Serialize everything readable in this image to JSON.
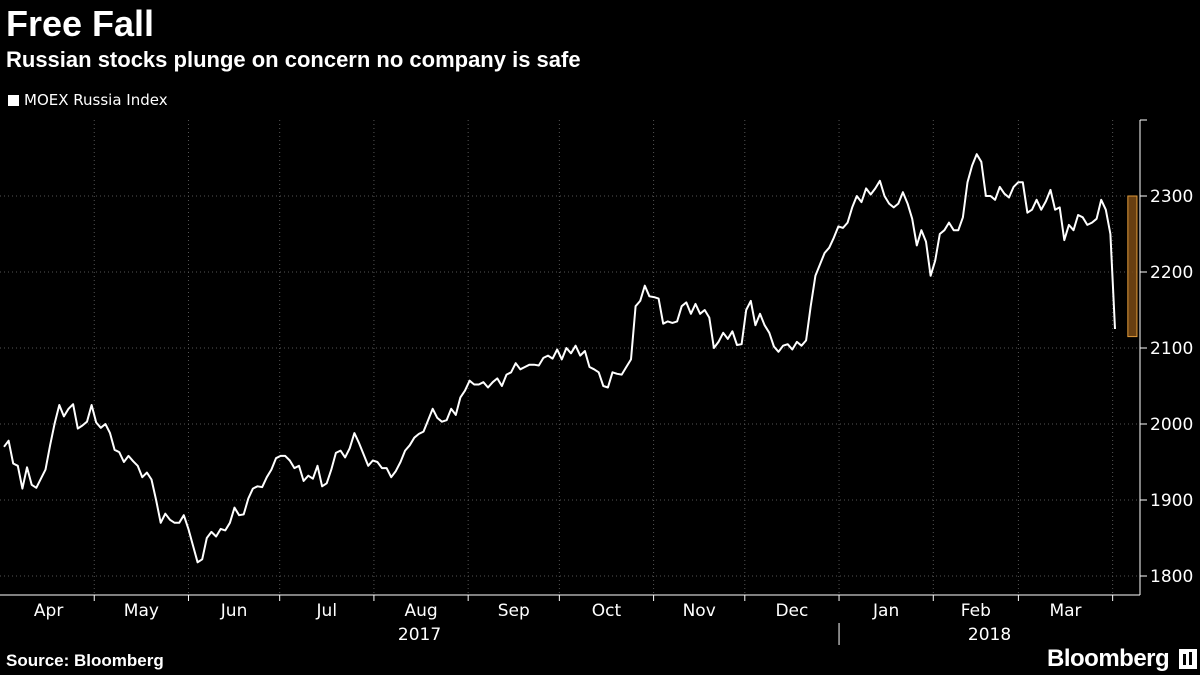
{
  "header": {
    "title": "Free Fall",
    "subtitle": "Russian stocks plunge on concern no company is safe"
  },
  "legend": {
    "label": "MOEX Russia Index"
  },
  "footer": {
    "source": "Source: Bloomberg",
    "brand": "Bloomberg"
  },
  "colors": {
    "background": "#000000",
    "line": "#ffffff",
    "highlight": "#7a4a14",
    "highlight_border": "#e09a3a",
    "grid": "#555555"
  },
  "chart_data": {
    "type": "line",
    "title": "Free Fall",
    "subtitle": "Russian stocks plunge on concern no company is safe",
    "series": [
      {
        "name": "MOEX Russia Index",
        "x_start": "2017-03-31",
        "x_end": "2018-04-10",
        "values": [
          1970,
          1978,
          1948,
          1945,
          1915,
          1943,
          1920,
          1916,
          1928,
          1940,
          1972,
          2001,
          2025,
          2010,
          2020,
          2026,
          1994,
          1998,
          2003,
          2025,
          2002,
          1995,
          2000,
          1988,
          1966,
          1963,
          1950,
          1958,
          1951,
          1945,
          1930,
          1936,
          1927,
          1900,
          1870,
          1882,
          1874,
          1870,
          1870,
          1880,
          1862,
          1840,
          1818,
          1822,
          1850,
          1858,
          1852,
          1862,
          1860,
          1870,
          1890,
          1880,
          1881,
          1902,
          1915,
          1918,
          1917,
          1930,
          1940,
          1955,
          1958,
          1958,
          1952,
          1942,
          1945,
          1925,
          1932,
          1928,
          1945,
          1918,
          1922,
          1940,
          1962,
          1965,
          1956,
          1968,
          1988,
          1975,
          1960,
          1945,
          1952,
          1950,
          1942,
          1942,
          1930,
          1938,
          1950,
          1965,
          1972,
          1982,
          1987,
          1990,
          2005,
          2020,
          2008,
          2003,
          2005,
          2020,
          2012,
          2035,
          2044,
          2057,
          2052,
          2052,
          2055,
          2048,
          2055,
          2060,
          2050,
          2065,
          2068,
          2080,
          2072,
          2075,
          2078,
          2078,
          2077,
          2087,
          2090,
          2086,
          2098,
          2085,
          2100,
          2093,
          2103,
          2090,
          2096,
          2075,
          2072,
          2068,
          2050,
          2048,
          2068,
          2066,
          2065,
          2075,
          2085,
          2155,
          2162,
          2182,
          2168,
          2167,
          2165,
          2132,
          2135,
          2133,
          2135,
          2155,
          2160,
          2145,
          2158,
          2145,
          2150,
          2140,
          2100,
          2108,
          2120,
          2112,
          2122,
          2104,
          2105,
          2150,
          2162,
          2130,
          2145,
          2130,
          2120,
          2102,
          2095,
          2103,
          2105,
          2098,
          2108,
          2103,
          2110,
          2155,
          2195,
          2210,
          2225,
          2232,
          2245,
          2260,
          2258,
          2265,
          2285,
          2300,
          2292,
          2310,
          2302,
          2310,
          2320,
          2300,
          2290,
          2285,
          2290,
          2305,
          2290,
          2270,
          2235,
          2255,
          2240,
          2195,
          2215,
          2250,
          2255,
          2265,
          2255,
          2255,
          2272,
          2318,
          2340,
          2355,
          2345,
          2300,
          2300,
          2295,
          2312,
          2303,
          2298,
          2312,
          2318,
          2318,
          2278,
          2282,
          2295,
          2282,
          2293,
          2308,
          2282,
          2285,
          2242,
          2262,
          2255,
          2275,
          2272,
          2262,
          2265,
          2270,
          2295,
          2282,
          2250,
          2125
        ]
      }
    ],
    "months": [
      "Apr",
      "May",
      "Jun",
      "Jul",
      "Aug",
      "Sep",
      "Oct",
      "Nov",
      "Dec",
      "Jan",
      "Feb",
      "Mar"
    ],
    "years": [
      "2017",
      "2018"
    ],
    "y_ticks": [
      1800,
      1900,
      2000,
      2100,
      2200,
      2300
    ],
    "ylim": [
      1775,
      2400
    ],
    "highlight": {
      "from": "2018-04-06",
      "to": "2018-04-09",
      "y_range": [
        2115,
        2300
      ]
    },
    "grid": true,
    "legend_position": "top-left",
    "y_axis_position": "right"
  }
}
